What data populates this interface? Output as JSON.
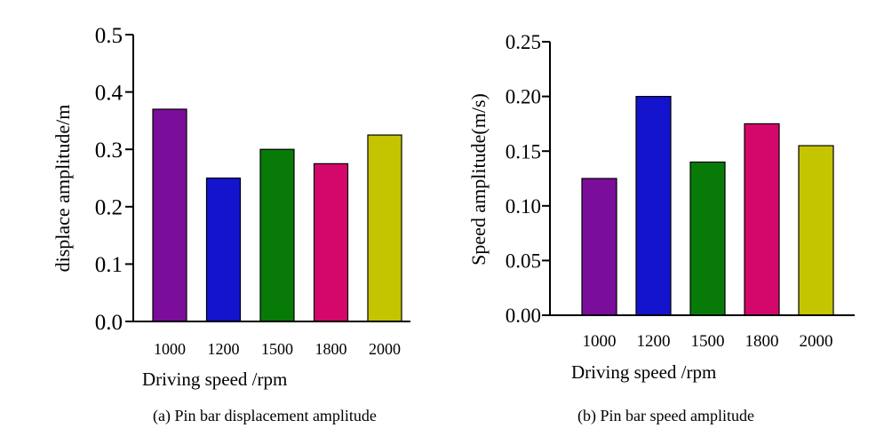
{
  "chart_data": [
    {
      "type": "bar",
      "caption": "(a) Pin bar displacement amplitude",
      "categories": [
        "1000",
        "1200",
        "1500",
        "1800",
        "2000"
      ],
      "values": [
        0.37,
        0.25,
        0.3,
        0.275,
        0.325
      ],
      "colors": [
        "#7a0e9a",
        "#1414cc",
        "#087a08",
        "#d4086a",
        "#c4c400"
      ],
      "xlabel": "Driving speed /rpm",
      "ylabel": "displace amplitude/m",
      "ylim": [
        0,
        0.5
      ],
      "yticks": [
        "0.0",
        "0.1",
        "0.2",
        "0.3",
        "0.4",
        "0.5"
      ],
      "grid": false
    },
    {
      "type": "bar",
      "caption": "(b) Pin bar speed amplitude",
      "categories": [
        "1000",
        "1200",
        "1500",
        "1800",
        "2000"
      ],
      "values": [
        0.125,
        0.2,
        0.14,
        0.175,
        0.155
      ],
      "colors": [
        "#7a0e9a",
        "#1414cc",
        "#087a08",
        "#d4086a",
        "#c4c400"
      ],
      "xlabel": "Driving speed /rpm",
      "ylabel": "Speed amplitude(m/s)",
      "ylim": [
        0,
        0.25
      ],
      "yticks": [
        "0.00",
        "0.05",
        "0.10",
        "0.15",
        "0.20",
        "0.25"
      ],
      "grid": false
    }
  ]
}
